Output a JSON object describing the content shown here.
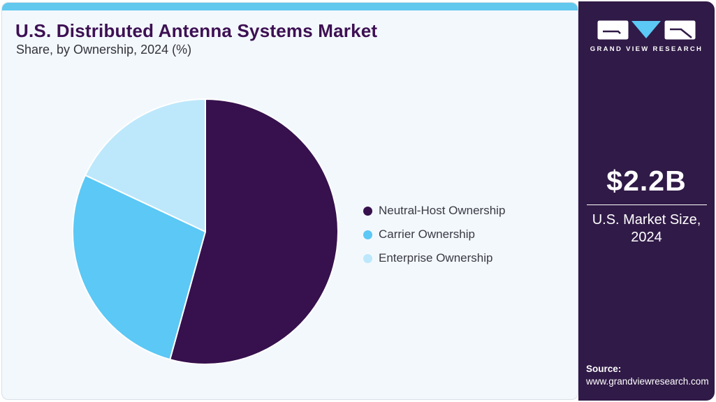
{
  "header": {
    "title": "U.S. Distributed Antenna Systems Market",
    "subtitle": "Share, by Ownership, 2024 (%)"
  },
  "chart_data": {
    "type": "pie",
    "title": "U.S. Distributed Antenna Systems Market Share, by Ownership, 2024 (%)",
    "unit": "percent share",
    "start_angle_deg": 0,
    "direction": "clockwise",
    "legend_position": "right",
    "data_labels_shown": false,
    "slices": [
      {
        "label": "Neutral-Host Ownership",
        "value": 54.3,
        "color": "#36114d"
      },
      {
        "label": "Carrier Ownership",
        "value": 27.7,
        "color": "#5bc8f5"
      },
      {
        "label": "Enterprise Ownership",
        "value": 18.0,
        "color": "#bde8fb"
      }
    ]
  },
  "sidebar": {
    "brand": "GRAND VIEW RESEARCH",
    "market_size_value": "$2.2B",
    "market_size_label_line1": "U.S. Market Size,",
    "market_size_label_line2": "2024",
    "source_label": "Source:",
    "source_url": "www.grandviewresearch.com"
  },
  "colors": {
    "accent_bar": "#62c8ee",
    "card_bg": "#f3f8fc",
    "card_border": "#d9e0e7",
    "sidebar_bg": "#301a47",
    "title_text": "#3d1053",
    "body_text": "#3a3a44",
    "logo_triangle": "#5bc8f5",
    "slice_separator": "#ffffff"
  }
}
